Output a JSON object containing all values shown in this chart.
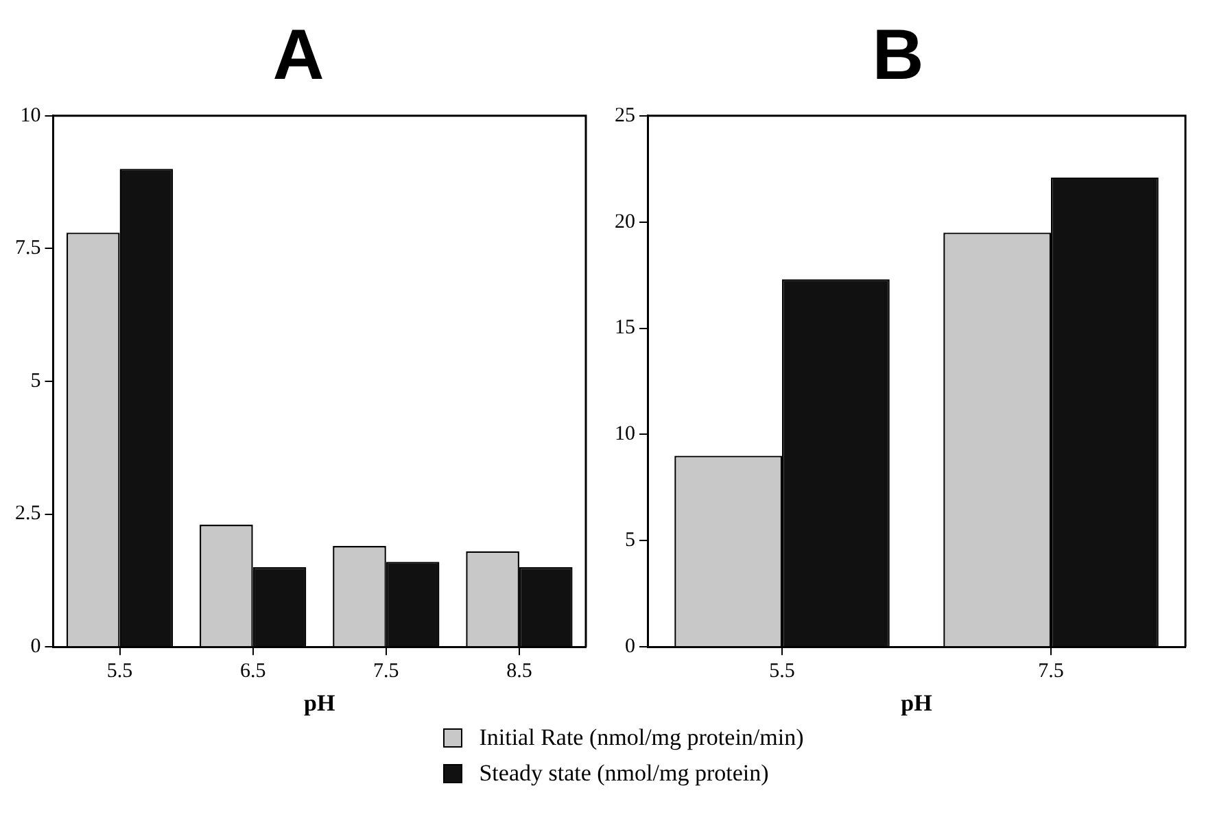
{
  "chart_data": [
    {
      "type": "bar",
      "title": "A",
      "xlabel": "pH",
      "categories": [
        "5.5",
        "6.5",
        "7.5",
        "8.5"
      ],
      "ylim": [
        0,
        10
      ],
      "yticks": [
        0,
        {
          "value": 2.5,
          "label": "2.5"
        },
        5,
        {
          "value": 7.5,
          "label": "7.5"
        },
        10
      ],
      "grid": false,
      "legend": "bottom",
      "series": [
        {
          "name": "Initial Rate (nmol/mg protein/min)",
          "color": "#c8c8c8",
          "values": [
            7.8,
            2.3,
            1.9,
            1.8
          ]
        },
        {
          "name": "Steady state (nmol/mg protein)",
          "color": "#111111",
          "values": [
            9.0,
            1.5,
            1.6,
            1.5
          ]
        }
      ]
    },
    {
      "type": "bar",
      "title": "B",
      "xlabel": "pH",
      "categories": [
        "5.5",
        "7.5"
      ],
      "ylim": [
        0,
        25
      ],
      "yticks": [
        0,
        5,
        10,
        15,
        20,
        25
      ],
      "grid": false,
      "series": [
        {
          "color": "#c8c8c8",
          "values": [
            9.0,
            19.5
          ]
        },
        {
          "color": "#111111",
          "values": [
            17.3,
            22.1
          ]
        }
      ]
    }
  ]
}
